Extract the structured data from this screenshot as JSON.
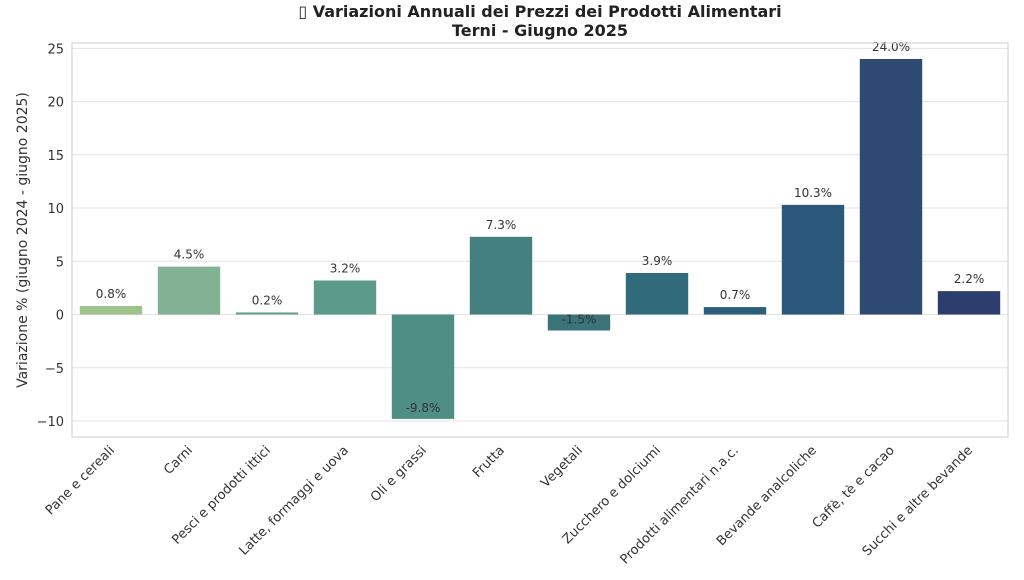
{
  "chart_data": {
    "type": "bar",
    "title_line1": "▯ Variazioni Annuali dei Prezzi dei Prodotti Alimentari",
    "title_line2": "Terni - Giugno 2025",
    "xlabel": "",
    "ylabel": "Variazione % (giugno 2024 - giugno 2025)",
    "ylim": [
      -11.5,
      25.5
    ],
    "yticks": [
      -10,
      -5,
      0,
      5,
      10,
      15,
      20,
      25
    ],
    "ytick_labels": [
      "−10",
      "−5",
      "0",
      "5",
      "10",
      "15",
      "20",
      "25"
    ],
    "grid": true,
    "categories": [
      "Pane e cereali",
      "Carni",
      "Pesci e prodotti ittici",
      "Latte, formaggi e uova",
      "Oli e grassi",
      "Frutta",
      "Vegetali",
      "Zucchero e dolciumi",
      "Prodotti alimentari n.a.c.",
      "Bevande analcoliche",
      "Caffè, tè e cacao",
      "Succhi e altre bevande"
    ],
    "values": [
      0.8,
      4.5,
      0.2,
      3.2,
      -9.8,
      7.3,
      -1.5,
      3.9,
      0.7,
      10.3,
      24.0,
      2.2
    ],
    "data_labels": [
      "0.8%",
      "4.5%",
      "0.2%",
      "3.2%",
      "-9.8%",
      "7.3%",
      "-1.5%",
      "3.9%",
      "0.7%",
      "10.3%",
      "24.0%",
      "2.2%"
    ],
    "colors": [
      "#9ec28c",
      "#82b193",
      "#6aa391",
      "#5c9b8c",
      "#4e8e85",
      "#44807f",
      "#3a7479",
      "#316a7b",
      "#2c5f7a",
      "#2a577a",
      "#2e4a72",
      "#2d3d6e"
    ]
  }
}
